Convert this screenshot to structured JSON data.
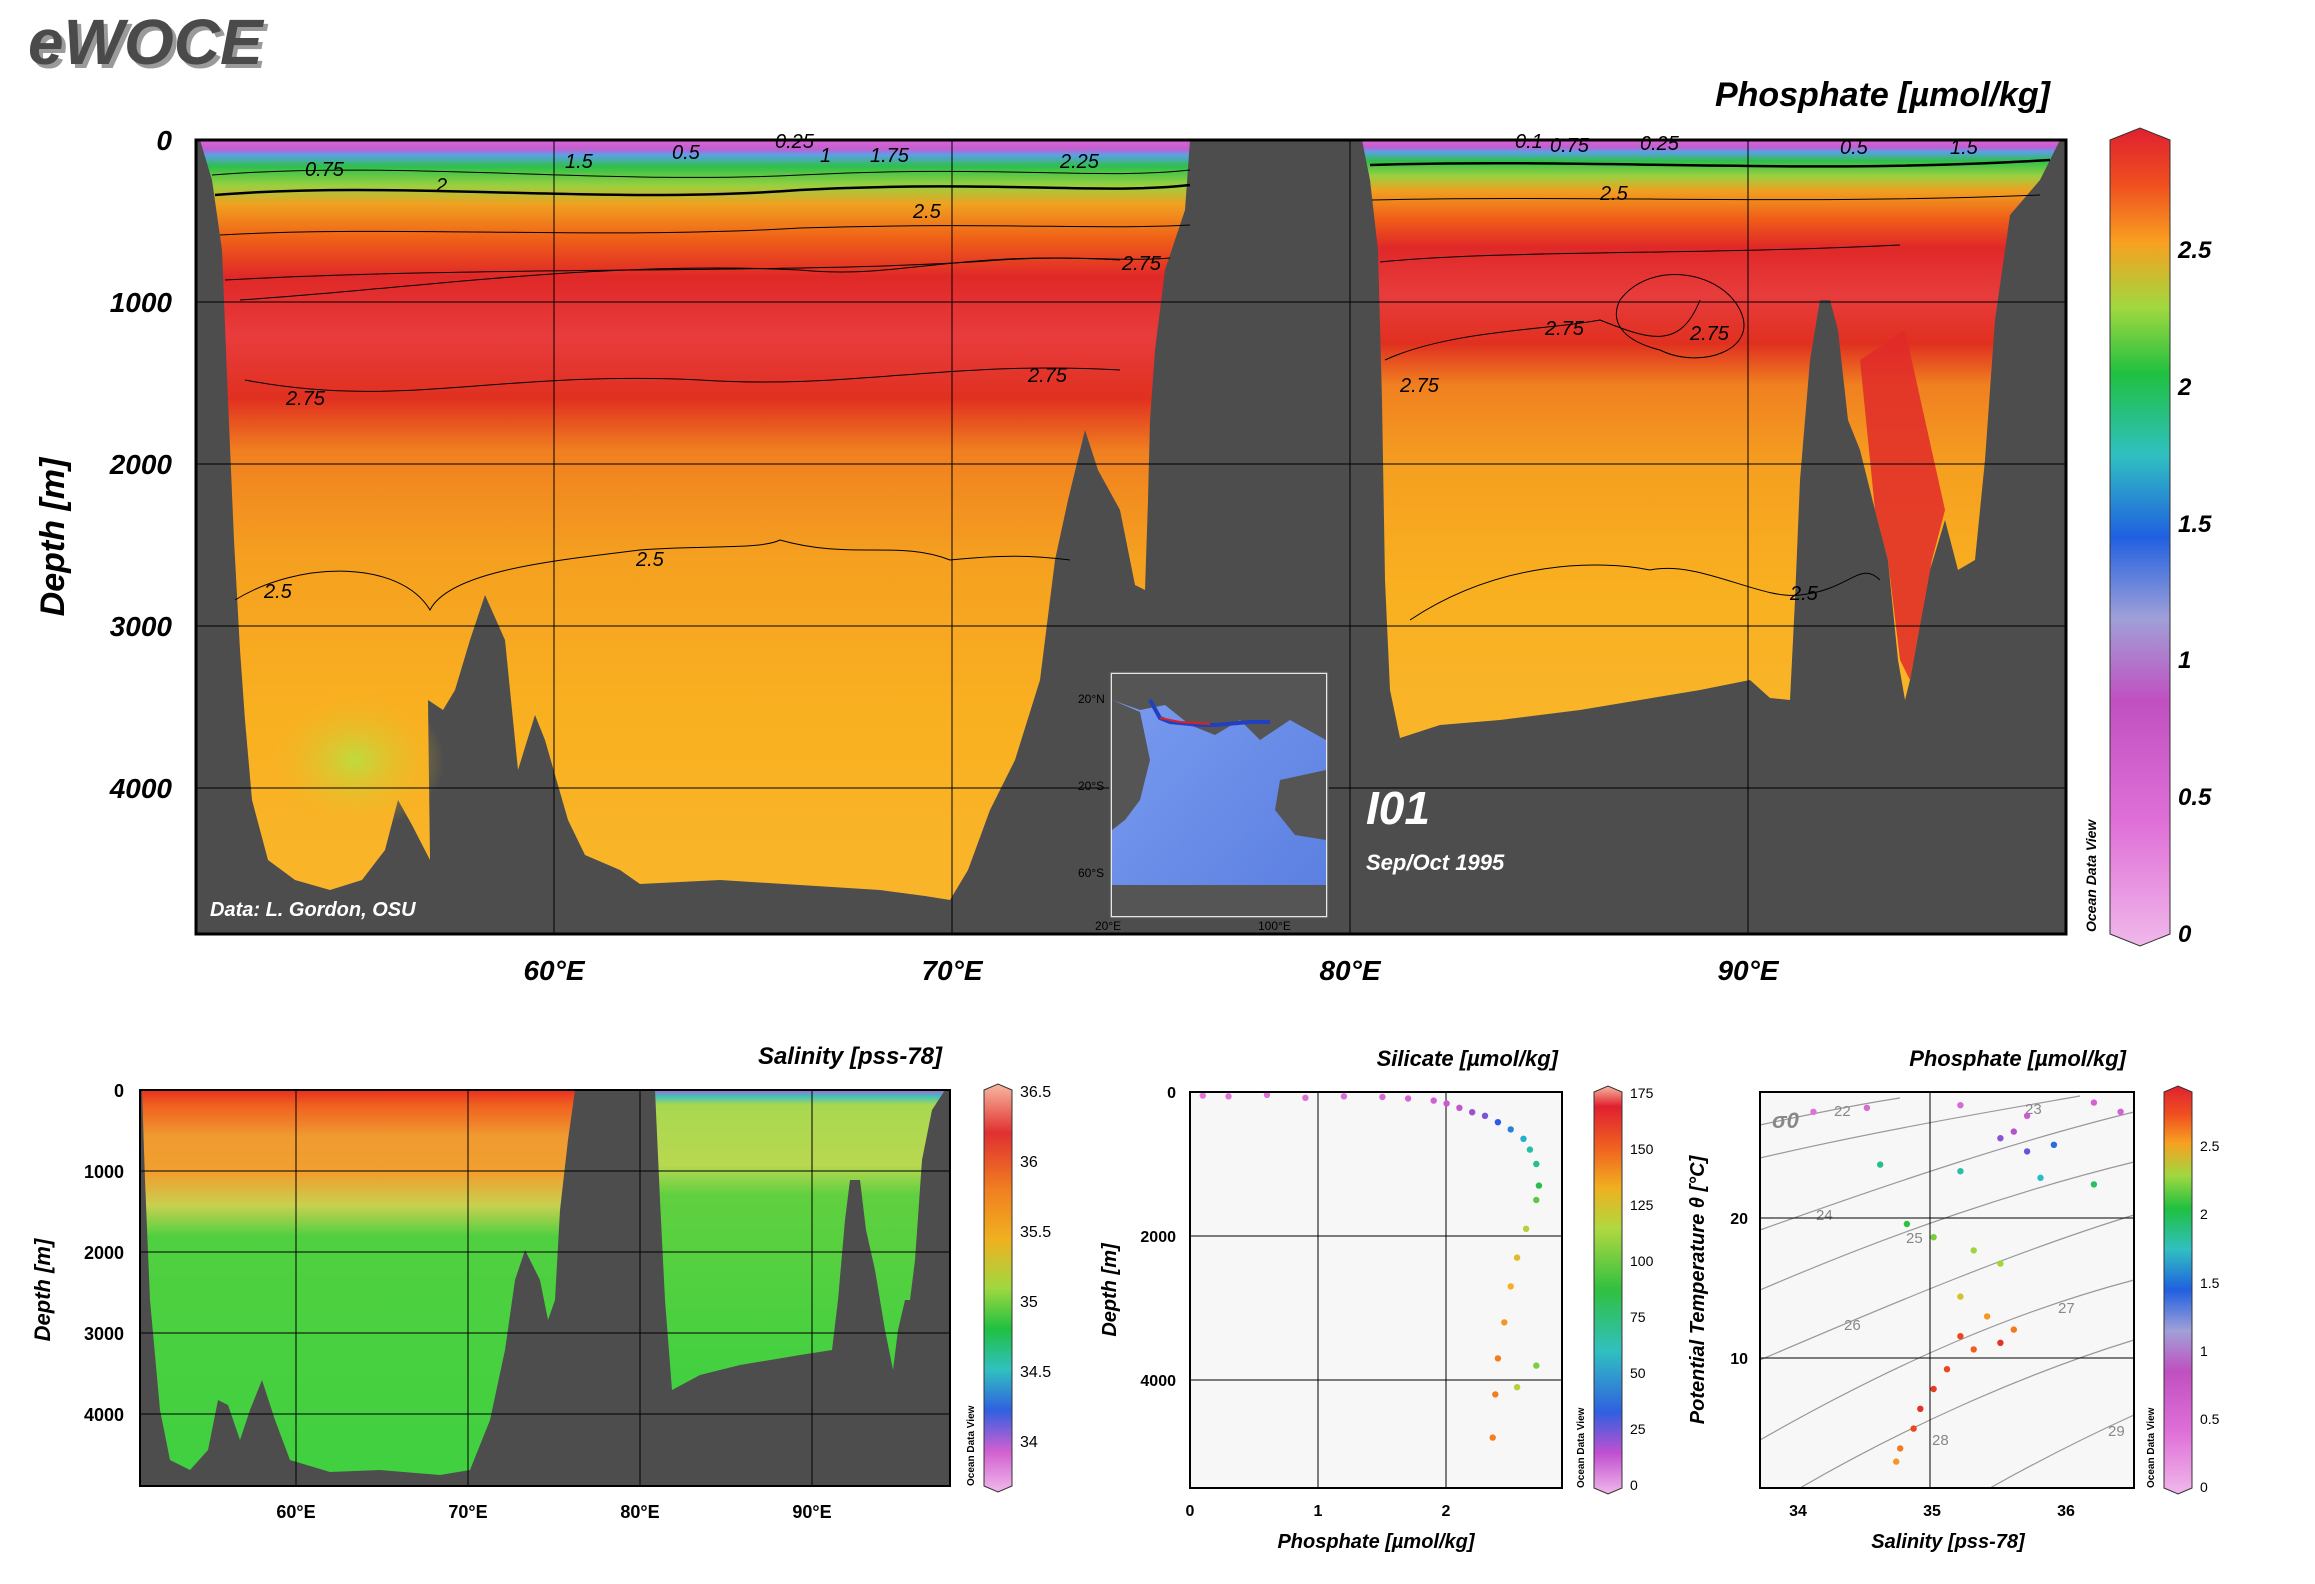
{
  "brand": {
    "text": "eWOCE"
  },
  "main": {
    "title": "Phosphate [µmol/kg]",
    "ylabel": "Depth [m]",
    "y_ticks": [
      "0",
      "1000",
      "2000",
      "3000",
      "4000"
    ],
    "x_ticks": [
      "60°E",
      "70°E",
      "80°E",
      "90°E"
    ],
    "credit": "Data: L. Gordon, OSU",
    "section_name": "I01",
    "section_date": "Sep/Oct 1995",
    "colorbar_ticks": [
      "2.5",
      "2",
      "1.5",
      "1",
      "0.5",
      "0"
    ],
    "colorbar_caption": "Ocean Data View",
    "contour_labels": [
      "0.75",
      "1.5",
      "0.5",
      "0.25",
      "1",
      "1.75",
      "2.25",
      "2",
      "2.5",
      "2.75",
      "2.75",
      "2.75",
      "2.5",
      "2.5",
      "2.75",
      "2.75",
      "2.75",
      "2.5",
      "0.5",
      "1.5",
      "0.75",
      "0.25",
      "0.1"
    ]
  },
  "inset_map": {
    "lat_ticks": [
      "20°N",
      "20°S",
      "60°S"
    ],
    "lon_ticks": [
      "20°E",
      "100°E"
    ]
  },
  "salinity_panel": {
    "title": "Salinity [pss-78]",
    "ylabel": "Depth [m]",
    "y_ticks": [
      "0",
      "1000",
      "2000",
      "3000",
      "4000"
    ],
    "x_ticks": [
      "60°E",
      "70°E",
      "80°E",
      "90°E"
    ],
    "colorbar_ticks": [
      "36.5",
      "36",
      "35.5",
      "35",
      "34.5",
      "34"
    ],
    "colorbar_caption": "Ocean Data View"
  },
  "profile_panel": {
    "title": "Silicate [µmol/kg]",
    "xlabel": "Phosphate [µmol/kg]",
    "ylabel": "Depth [m]",
    "x_ticks": [
      "0",
      "1",
      "2"
    ],
    "y_ticks": [
      "0",
      "2000",
      "4000"
    ],
    "colorbar_ticks": [
      "175",
      "150",
      "125",
      "100",
      "75",
      "50",
      "25",
      "0"
    ],
    "colorbar_caption": "Ocean Data View"
  },
  "ts_panel": {
    "title": "Phosphate [µmol/kg]",
    "xlabel": "Salinity [pss-78]",
    "ylabel": "Potential Temperature θ [°C]",
    "x_ticks": [
      "34",
      "35",
      "36"
    ],
    "y_ticks": [
      "20",
      "10"
    ],
    "sigma_symbol": "σ0",
    "isopycnal_labels": [
      "22",
      "23",
      "24",
      "25",
      "26",
      "27",
      "28",
      "29"
    ],
    "colorbar_ticks": [
      "2.5",
      "2",
      "1.5",
      "1",
      "0.5",
      "0"
    ],
    "colorbar_caption": "Ocean Data View"
  },
  "chart_data": [
    {
      "type": "heatmap",
      "title": "Phosphate [µmol/kg]",
      "xlabel": "",
      "ylabel": "Depth [m]",
      "x_range": [
        51,
        97.5
      ],
      "y_range": [
        4900,
        0
      ],
      "x_ticks": [
        60,
        70,
        80,
        90
      ],
      "y_ticks": [
        0,
        1000,
        2000,
        3000,
        4000
      ],
      "color_range": [
        0,
        2.9
      ],
      "vertical_profile": {
        "depth": [
          0,
          100,
          200,
          400,
          600,
          800,
          1000,
          1500,
          1900,
          2200,
          2800,
          3500,
          4300,
          4900
        ],
        "phosphate": [
          0.5,
          1.5,
          2.2,
          2.5,
          2.6,
          2.75,
          2.85,
          2.8,
          2.7,
          2.6,
          2.5,
          2.45,
          2.4,
          2.3
        ]
      },
      "contour_levels": [
        0.25,
        0.5,
        0.75,
        1,
        1.5,
        1.75,
        2,
        2.25,
        2.5,
        2.75
      ],
      "grid": true
    },
    {
      "type": "heatmap",
      "title": "Salinity [pss-78]",
      "ylabel": "Depth [m]",
      "x_range": [
        51,
        97.5
      ],
      "y_range": [
        4900,
        0
      ],
      "x_ticks": [
        60,
        70,
        80,
        90
      ],
      "y_ticks": [
        0,
        1000,
        2000,
        3000,
        4000
      ],
      "color_range": [
        33.7,
        36.5
      ],
      "vertical_profile": {
        "depth": [
          0,
          100,
          500,
          1000,
          1500,
          2000,
          4900
        ],
        "salinity_west": [
          36.2,
          35.9,
          35.6,
          35.3,
          34.9,
          34.78,
          34.72
        ],
        "salinity_east": [
          34.0,
          34.6,
          35.0,
          34.9,
          34.8,
          34.75,
          34.72
        ]
      },
      "grid": true
    },
    {
      "type": "scatter",
      "title": "Silicate [µmol/kg]",
      "xlabel": "Phosphate [µmol/kg]",
      "ylabel": "Depth [m]",
      "xlim": [
        0,
        2.9
      ],
      "ylim": [
        5500,
        0
      ],
      "color_range": [
        0,
        175
      ],
      "series": [
        {
          "points": [
            [
              0.1,
              50,
              2
            ],
            [
              0.3,
              60,
              4
            ],
            [
              0.6,
              40,
              6
            ],
            [
              0.9,
              80,
              8
            ],
            [
              1.2,
              60,
              10
            ],
            [
              1.5,
              70,
              12
            ],
            [
              1.7,
              90,
              16
            ],
            [
              1.9,
              120,
              20
            ],
            [
              2.0,
              160,
              25
            ],
            [
              2.1,
              220,
              30
            ],
            [
              2.2,
              280,
              40
            ],
            [
              2.3,
              330,
              45
            ],
            [
              2.4,
              420,
              55
            ],
            [
              2.5,
              520,
              65
            ],
            [
              2.6,
              650,
              75
            ],
            [
              2.65,
              800,
              85
            ],
            [
              2.7,
              1000,
              90
            ],
            [
              2.72,
              1300,
              100
            ],
            [
              2.7,
              1500,
              110
            ],
            [
              2.62,
              1900,
              125
            ],
            [
              2.55,
              2300,
              135
            ],
            [
              2.5,
              2700,
              140
            ],
            [
              2.45,
              3200,
              145
            ],
            [
              2.4,
              3700,
              150
            ],
            [
              2.38,
              4200,
              150
            ],
            [
              2.36,
              4800,
              150
            ],
            [
              2.55,
              4100,
              125
            ],
            [
              2.7,
              3800,
              115
            ]
          ]
        }
      ],
      "grid": true
    },
    {
      "type": "scatter",
      "title": "Phosphate [µmol/kg]",
      "xlabel": "Salinity [pss-78]",
      "ylabel": "Potential Temperature θ [°C]",
      "xlim": [
        33.7,
        36.5
      ],
      "ylim": [
        -1,
        29
      ],
      "color_range": [
        0,
        2.9
      ],
      "series": [
        {
          "points": [
            [
              34.1,
              27.5,
              0.1
            ],
            [
              34.5,
              27.8,
              0.2
            ],
            [
              35.2,
              28.0,
              0.2
            ],
            [
              35.7,
              27.2,
              0.4
            ],
            [
              36.2,
              28.2,
              0.3
            ],
            [
              36.4,
              27.5,
              0.3
            ],
            [
              35.6,
              26.0,
              0.6
            ],
            [
              35.5,
              25.5,
              0.7
            ],
            [
              35.7,
              24.5,
              0.8
            ],
            [
              35.9,
              25.0,
              1.0
            ],
            [
              34.6,
              23.5,
              1.5
            ],
            [
              35.2,
              23.0,
              1.4
            ],
            [
              35.8,
              22.5,
              1.3
            ],
            [
              36.2,
              22.0,
              1.6
            ],
            [
              34.8,
              19.0,
              1.7
            ],
            [
              35.0,
              18.0,
              1.9
            ],
            [
              35.3,
              17.0,
              2.0
            ],
            [
              35.5,
              16.0,
              2.0
            ],
            [
              35.2,
              13.5,
              2.2
            ],
            [
              35.4,
              12.0,
              2.4
            ],
            [
              35.6,
              11.0,
              2.5
            ],
            [
              35.3,
              9.5,
              2.6
            ],
            [
              35.1,
              8.0,
              2.7
            ],
            [
              35.0,
              6.5,
              2.75
            ],
            [
              34.9,
              5.0,
              2.8
            ],
            [
              34.85,
              3.5,
              2.7
            ],
            [
              34.75,
              2.0,
              2.5
            ],
            [
              34.72,
              1.0,
              2.4
            ],
            [
              35.2,
              10.5,
              2.7
            ],
            [
              35.5,
              10.0,
              2.8
            ]
          ]
        }
      ],
      "isopycnals": [
        22,
        23,
        24,
        25,
        26,
        27,
        28,
        29
      ],
      "grid": true
    }
  ],
  "colors": {
    "seafloor": "#4d4d4d",
    "background": "#ffffff"
  }
}
